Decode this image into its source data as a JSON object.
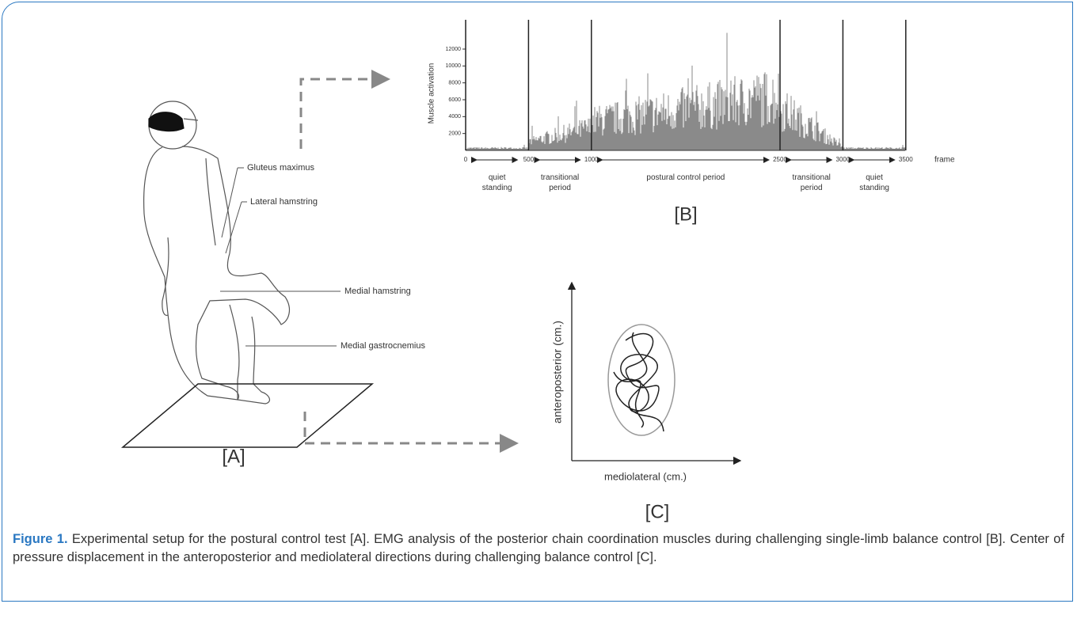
{
  "panel_a": {
    "label": "[A]",
    "muscles": [
      "Gluteus maximus",
      "Lateral hamstring",
      "Medial hamstring",
      "Medial gastrocnemius"
    ]
  },
  "panel_b": {
    "label": "[B]",
    "y_axis_label": "Muscle activation",
    "yticks": [
      2000,
      4000,
      6000,
      8000,
      10000,
      12000
    ],
    "xticks": [
      0,
      500,
      1000,
      2500,
      3000,
      3500
    ],
    "x_axis_label": "frame",
    "periods": [
      [
        "quiet",
        "standing"
      ],
      [
        "transitional",
        "period"
      ],
      [
        "postural control period"
      ],
      [
        "transitional",
        "period"
      ],
      [
        "quiet",
        "standing"
      ]
    ]
  },
  "panel_c": {
    "label": "[C]",
    "y_axis_label": "anteroposterior (cm.)",
    "x_axis_label": "mediolateral (cm.)"
  },
  "caption": {
    "figure_label": "Figure 1.",
    "text": "Experimental setup for the postural control test [A]. EMG analysis of the posterior chain coordination muscles during challenging single-limb balance control [B]. Center of pressure displacement in the anteroposterior and mediolateral directions during challenging balance control [C]."
  }
}
